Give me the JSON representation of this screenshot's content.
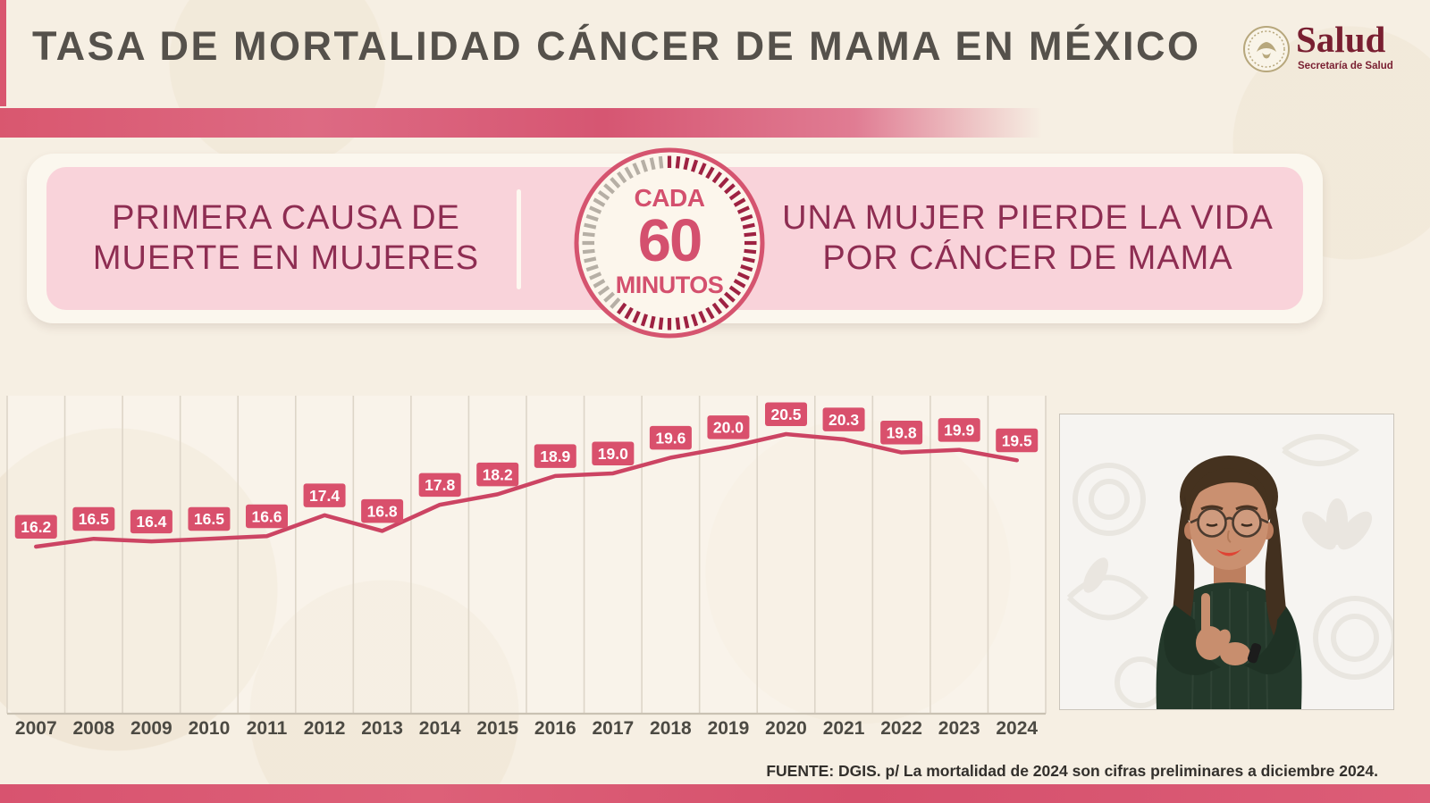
{
  "header": {
    "title": "TASA DE MORTALIDAD CÁNCER DE MAMA EN MÉXICO",
    "logo": {
      "brand": "Salud",
      "subtitle": "Secretaría de Salud"
    }
  },
  "banner": {
    "left": {
      "line1": "PRIMERA CAUSA DE",
      "line2": "MUERTE EN MUJERES"
    },
    "badge": {
      "top": "CADA",
      "number": "60",
      "bottom": "MINUTOS"
    },
    "right": {
      "line1": "UNA MUJER PIERDE LA VIDA",
      "line2": "POR CÁNCER DE MAMA"
    }
  },
  "chart_data": {
    "type": "line",
    "title": "",
    "xlabel": "",
    "ylabel": "",
    "categories": [
      "2007",
      "2008",
      "2009",
      "2010",
      "2011",
      "2012",
      "2013",
      "2014",
      "2015",
      "2016",
      "2017",
      "2018",
      "2019",
      "2020",
      "2021",
      "2022",
      "2023",
      "2024"
    ],
    "values": [
      16.2,
      16.5,
      16.4,
      16.5,
      16.6,
      17.4,
      16.8,
      17.8,
      18.2,
      18.9,
      19.0,
      19.6,
      20.0,
      20.5,
      20.3,
      19.8,
      19.9,
      19.5
    ],
    "ylim": [
      16,
      21
    ],
    "grid": "vertical-columns",
    "legend": "none",
    "data_labels": true,
    "line_color": "#cc4463",
    "label_bg": "#d9506c",
    "label_text_color": "#ffffff",
    "axis_label_color": "#4c4a43",
    "gridline_color": "#ddd5c8"
  },
  "footer": {
    "source": "FUENTE: DGIS. p/ La mortalidad de 2024 son cifras preliminares a diciembre 2024."
  },
  "colors": {
    "background": "#f6efe3",
    "accent_pink": "#d9566f",
    "banner_fill": "#f9d3da",
    "banner_text": "#8e2d52",
    "title_text": "#55514b",
    "brand_maroon": "#791f31",
    "tick_crimson": "#9e2242",
    "tick_gray": "#b6afa5"
  }
}
